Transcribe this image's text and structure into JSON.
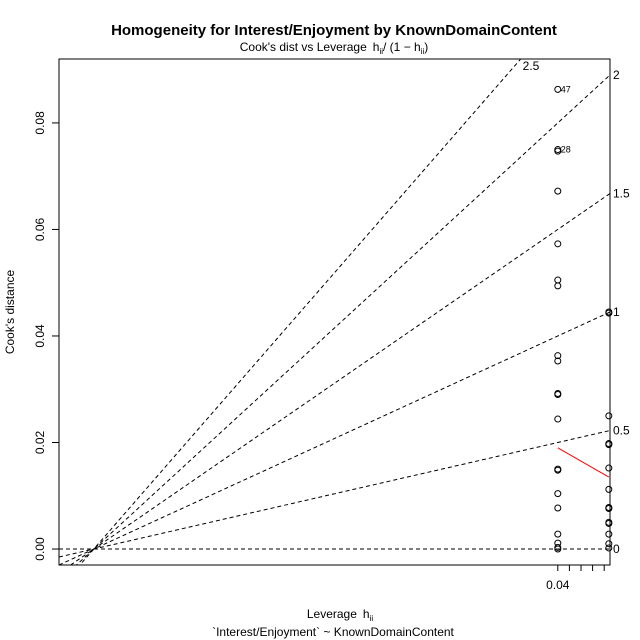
{
  "chart_data": {
    "type": "scatter",
    "title": "Homogeneity for Interest/Enjoyment by KnownDomainContent",
    "subtitle": {
      "prefix": "Cook's dist vs Leverage",
      "formula_h": "h",
      "formula_sub": "ii",
      "formula_mid": "/ (1 − h",
      "formula_sub2": "ii",
      "formula_end": ")"
    },
    "xlabel": {
      "text": "Leverage",
      "h": "h",
      "sub": "ii"
    },
    "xlabel2": "`Interest/Enjoyment` ~ KnownDomainContent",
    "ylabel": "Cook's distance",
    "xlim": [
      -0.003,
      0.0445
    ],
    "ylim": [
      -0.003,
      0.092
    ],
    "x_ticks": [
      0.04
    ],
    "x_tick_labels": [
      "0.04"
    ],
    "x_minor_ticks": [
      0.04,
      0.041,
      0.042,
      0.043,
      0.044
    ],
    "y_ticks": [
      0.0,
      0.02,
      0.04,
      0.06,
      0.08
    ],
    "y_tick_labels": [
      "0.00",
      "0.02",
      "0.04",
      "0.06",
      "0.08"
    ],
    "grid": false,
    "contour_slopes": [
      0,
      0.5,
      1,
      1.5,
      2,
      2.5
    ],
    "contour_labels": [
      {
        "slope": 0,
        "label": "0"
      },
      {
        "slope": 0.5,
        "label": "0.5"
      },
      {
        "slope": 1,
        "label": "1"
      },
      {
        "slope": 1.5,
        "label": "1.5"
      },
      {
        "slope": 2,
        "label": "2"
      },
      {
        "slope": 2.5,
        "label": "2.5"
      }
    ],
    "points": [
      {
        "x": 0.04,
        "y": 0.0863,
        "label": "47"
      },
      {
        "x": 0.04,
        "y": 0.075,
        "label": "28"
      },
      {
        "x": 0.04,
        "y": 0.0747
      },
      {
        "x": 0.04,
        "y": 0.0672
      },
      {
        "x": 0.04,
        "y": 0.0573
      },
      {
        "x": 0.04,
        "y": 0.0505
      },
      {
        "x": 0.04,
        "y": 0.0494
      },
      {
        "x": 0.04,
        "y": 0.0363
      },
      {
        "x": 0.04,
        "y": 0.0353
      },
      {
        "x": 0.04,
        "y": 0.0292
      },
      {
        "x": 0.04,
        "y": 0.029
      },
      {
        "x": 0.04,
        "y": 0.0244
      },
      {
        "x": 0.04,
        "y": 0.015
      },
      {
        "x": 0.04,
        "y": 0.0148
      },
      {
        "x": 0.04,
        "y": 0.0104
      },
      {
        "x": 0.04,
        "y": 0.0077
      },
      {
        "x": 0.04,
        "y": 0.0028
      },
      {
        "x": 0.04,
        "y": 0.0011
      },
      {
        "x": 0.04,
        "y": 0.0003
      },
      {
        "x": 0.04,
        "y": 0.0
      },
      {
        "x": 0.0444,
        "y": 0.0445
      },
      {
        "x": 0.0444,
        "y": 0.0443
      },
      {
        "x": 0.0444,
        "y": 0.025
      },
      {
        "x": 0.0444,
        "y": 0.0198
      },
      {
        "x": 0.0444,
        "y": 0.0196
      },
      {
        "x": 0.0444,
        "y": 0.0152
      },
      {
        "x": 0.0444,
        "y": 0.0112
      },
      {
        "x": 0.0444,
        "y": 0.0078
      },
      {
        "x": 0.0444,
        "y": 0.0076
      },
      {
        "x": 0.0444,
        "y": 0.005
      },
      {
        "x": 0.0444,
        "y": 0.0048
      },
      {
        "x": 0.0444,
        "y": 0.0028
      },
      {
        "x": 0.0444,
        "y": 0.001
      },
      {
        "x": 0.0444,
        "y": 0.0002
      }
    ],
    "smooth_line": {
      "x": [
        0.04,
        0.0444
      ],
      "y": [
        0.019,
        0.0135
      ],
      "color": "#ff0000"
    },
    "point_color": "#000000",
    "contour_color": "#000000"
  }
}
